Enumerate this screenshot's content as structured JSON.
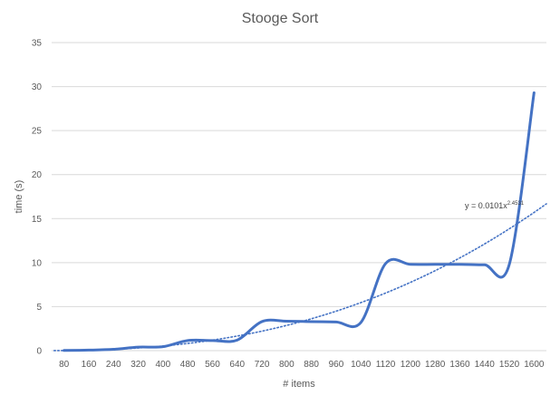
{
  "chart_data": {
    "type": "line",
    "title": "Stooge Sort",
    "xlabel": "# items",
    "ylabel": "time (s)",
    "ylim": [
      0,
      35
    ],
    "yticks": [
      0,
      5,
      10,
      15,
      20,
      25,
      30,
      35
    ],
    "categories": [
      "80",
      "160",
      "240",
      "320",
      "400",
      "480",
      "560",
      "640",
      "720",
      "800",
      "880",
      "960",
      "1040",
      "1120",
      "1200",
      "1280",
      "1360",
      "1440",
      "1520",
      "1600"
    ],
    "series": [
      {
        "values": [
          0.02,
          0.06,
          0.15,
          0.4,
          0.45,
          1.15,
          1.15,
          1.2,
          3.3,
          3.35,
          3.3,
          3.25,
          3.2,
          9.9,
          9.8,
          9.8,
          9.8,
          9.75,
          9.8,
          29.3
        ],
        "color": "#4472c4",
        "smooth": true
      }
    ],
    "trendline": {
      "type": "power",
      "coefficient": 0.0101,
      "exponent": 2.4531,
      "label_prefix": "y = 0.0101x",
      "label_exponent": "2.4531",
      "color": "#4472c4",
      "style": "dotted"
    },
    "grid": true,
    "legend": "none"
  }
}
